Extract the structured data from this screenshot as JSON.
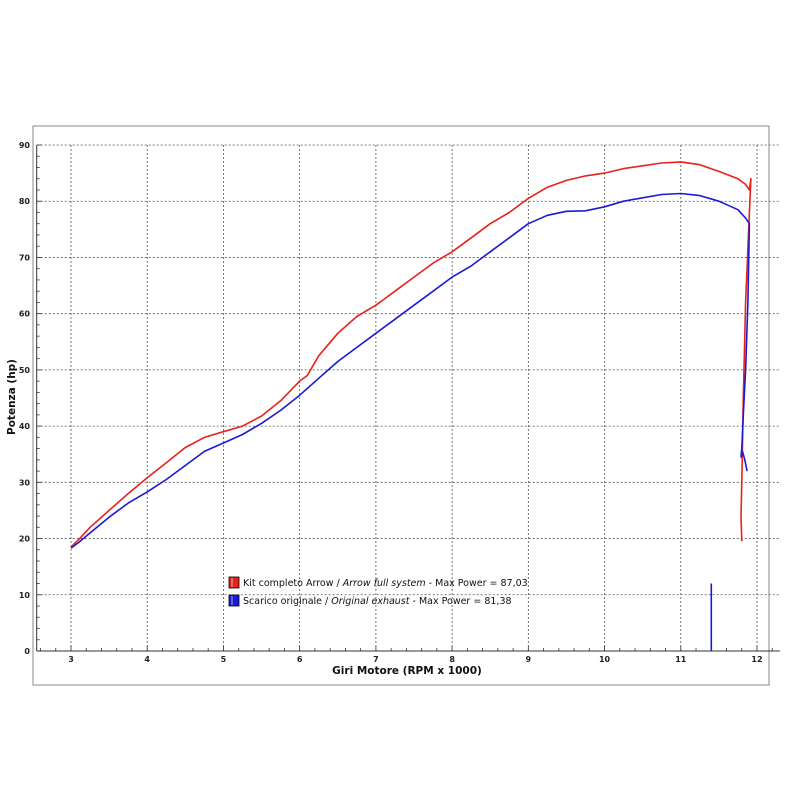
{
  "chart_data": {
    "type": "line",
    "xlabel": "Giri Motore (RPM x 1000)",
    "ylabel": "Potenza (hp)",
    "xlim": [
      2.55,
      12.3
    ],
    "ylim": [
      0,
      90
    ],
    "xticks": [
      3,
      4,
      5,
      6,
      7,
      8,
      9,
      10,
      11,
      12
    ],
    "yticks": [
      0,
      10,
      20,
      30,
      40,
      50,
      60,
      70,
      80,
      90
    ],
    "grid": true,
    "legend_position": "bottom-center",
    "legend": [
      {
        "series_index": 0,
        "prefix": "Kit completo Arrow / ",
        "italic": "Arrow full system",
        "suffix": " - Max Power = 87,03"
      },
      {
        "series_index": 1,
        "prefix": "Scarico originale / ",
        "italic": "Original exhaust",
        "suffix": " - Max Power = 81,38"
      }
    ],
    "series": [
      {
        "name": "Kit completo Arrow / Arrow full system",
        "color": "#e8211c",
        "x": [
          3.0,
          3.1,
          3.25,
          3.5,
          3.75,
          4.0,
          4.25,
          4.5,
          4.75,
          5.0,
          5.25,
          5.5,
          5.75,
          6.0,
          6.1,
          6.25,
          6.5,
          6.75,
          7.0,
          7.25,
          7.5,
          7.75,
          8.0,
          8.25,
          8.5,
          8.75,
          9.0,
          9.25,
          9.5,
          9.75,
          10.0,
          10.25,
          10.5,
          10.75,
          11.0,
          11.25,
          11.5,
          11.75,
          11.85,
          11.9,
          11.92,
          11.9,
          11.85,
          11.82,
          11.8,
          11.79,
          11.8
        ],
        "y": [
          18.5,
          19.8,
          22.0,
          25.0,
          28.0,
          30.8,
          33.5,
          36.2,
          38.0,
          39.0,
          40.0,
          41.8,
          44.5,
          48.0,
          49.0,
          52.5,
          56.5,
          59.5,
          61.5,
          64.0,
          66.5,
          69.0,
          71.0,
          73.5,
          76.0,
          78.0,
          80.5,
          82.5,
          83.7,
          84.5,
          85.0,
          85.8,
          86.3,
          86.8,
          87.0,
          86.5,
          85.3,
          84.0,
          83.0,
          82.0,
          84.0,
          78.0,
          62.0,
          45.0,
          30.0,
          24.0,
          19.5
        ]
      },
      {
        "name": "Scarico originale / Original exhaust",
        "color": "#1a1ad6",
        "x": [
          3.0,
          3.1,
          3.25,
          3.5,
          3.75,
          4.0,
          4.25,
          4.5,
          4.75,
          5.0,
          5.25,
          5.5,
          5.75,
          6.0,
          6.25,
          6.5,
          6.75,
          7.0,
          7.25,
          7.5,
          7.75,
          8.0,
          8.25,
          8.5,
          8.75,
          9.0,
          9.25,
          9.5,
          9.75,
          10.0,
          10.25,
          10.5,
          10.75,
          11.0,
          11.25,
          11.5,
          11.75,
          11.85,
          11.9,
          11.88,
          11.85,
          11.82,
          11.8,
          11.79,
          11.81,
          11.84,
          11.87
        ],
        "y": [
          18.3,
          19.3,
          21.0,
          23.8,
          26.3,
          28.3,
          30.5,
          33.0,
          35.5,
          37.0,
          38.5,
          40.5,
          42.8,
          45.5,
          48.5,
          51.5,
          54.0,
          56.5,
          59.0,
          61.5,
          64.0,
          66.5,
          68.5,
          71.0,
          73.5,
          76.0,
          77.5,
          78.2,
          78.3,
          79.0,
          80.0,
          80.6,
          81.2,
          81.38,
          81.0,
          80.0,
          78.5,
          77.0,
          76.0,
          62.0,
          50.0,
          42.0,
          36.0,
          34.5,
          35.5,
          34.0,
          32.0
        ]
      },
      {
        "name": "",
        "color": "#1a1ad6",
        "x": [
          11.4,
          11.4
        ],
        "y": [
          0,
          12
        ]
      }
    ]
  }
}
